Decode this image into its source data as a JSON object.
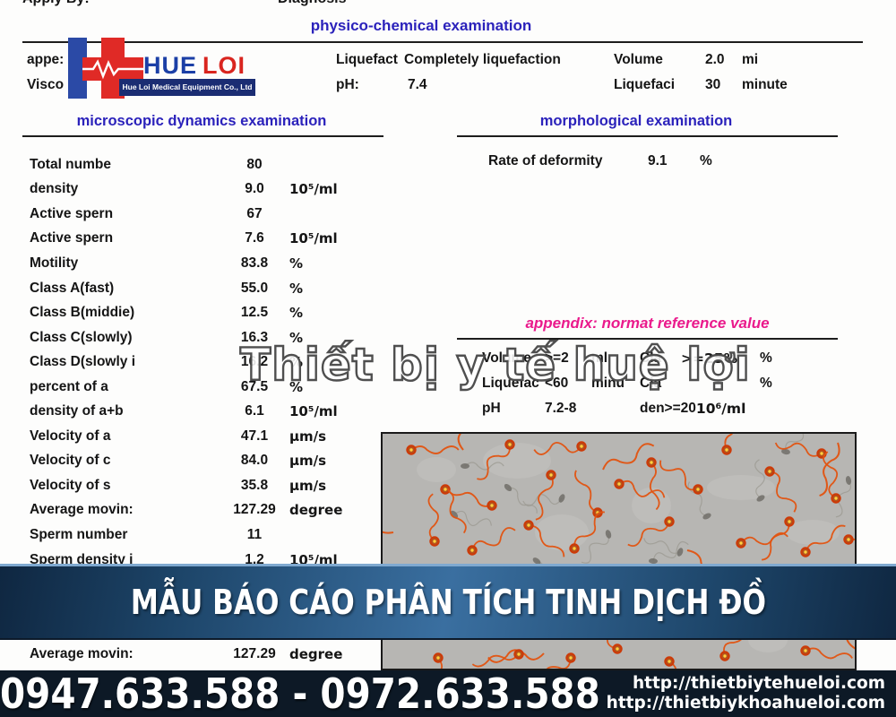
{
  "header": {
    "apply_by": "Apply By:",
    "diagnosis": "Diagnosis",
    "physico_title": "physico-chemical examination"
  },
  "logo": {
    "name_part1": "HUE",
    "name_part2": "LOI",
    "tagline": "Hue Loi Medical Equipment Co., Ltd"
  },
  "physico": {
    "appearance_label": "appe:",
    "viscosity_label": "Visco",
    "liquefact_label": "Liquefact",
    "liquefact_value": "Completely liquefaction",
    "volume_label": "Volume",
    "volume_value": "2.0",
    "volume_unit": "mi",
    "ph_label": "pH:",
    "ph_value": "7.4",
    "liquefaci_label": "Liquefaci",
    "liquefaci_value": "30",
    "liquefaci_unit": "minute"
  },
  "microscopic": {
    "title": "microscopic dynamics examination",
    "rows": [
      {
        "label": "Total numbe",
        "value": "80",
        "unit": ""
      },
      {
        "label": "density",
        "value": "9.0",
        "unit": "10⁵/ml"
      },
      {
        "label": "Active spern",
        "value": "67",
        "unit": ""
      },
      {
        "label": "Active spern",
        "value": "7.6",
        "unit": "10⁵/ml"
      },
      {
        "label": "Motility",
        "value": "83.8",
        "unit": "%"
      },
      {
        "label": "Class A(fast)",
        "value": "55.0",
        "unit": "%"
      },
      {
        "label": "Class B(middie)",
        "value": "12.5",
        "unit": "%"
      },
      {
        "label": "Class C(slowly)",
        "value": "16.3",
        "unit": "%"
      },
      {
        "label": "Class D(slowly i",
        "value": "16.2",
        "unit": "%"
      },
      {
        "label": "percent of a",
        "value": "67.5",
        "unit": "%"
      },
      {
        "label": "density of a+b",
        "value": "6.1",
        "unit": "10⁵/ml"
      },
      {
        "label": "Velocity of a",
        "value": "47.1",
        "unit": "µm/s"
      },
      {
        "label": "Velocity of c",
        "value": "84.0",
        "unit": "µm/s"
      },
      {
        "label": "Velocity of s",
        "value": "35.8",
        "unit": "µm/s"
      },
      {
        "label": "Average movin:",
        "value": "127.29",
        "unit": "degree"
      },
      {
        "label": "Sperm number",
        "value": "11",
        "unit": ""
      },
      {
        "label": "Sperm density i",
        "value": "1.2",
        "unit": "10⁵/ml"
      }
    ]
  },
  "morphological": {
    "title": "morphological examination",
    "rate_label": "Rate of deformity",
    "rate_value": "9.1",
    "rate_unit": "%"
  },
  "appendix": {
    "title": "appendix: normat reference value",
    "left_rows": [
      {
        "label": "Volume",
        "value": ">=2",
        "unit": "ml"
      },
      {
        "label": "Liquefac",
        "value": "<60",
        "unit": "minu"
      },
      {
        "label": "pH",
        "value": "7.2-8",
        "unit": ""
      }
    ],
    "right_rows": [
      {
        "label": "Cla",
        "value": ">=25%",
        "unit": "%"
      },
      {
        "label": "Cla",
        "value": "",
        "unit": "%"
      },
      {
        "label": "den>=20",
        "value": "10⁶/ml",
        "unit": ""
      }
    ]
  },
  "watermark": "Thiết bị y tế huệ lợi",
  "banner": {
    "text": "MẪU BÁO CÁO PHÂN TÍCH TINH DỊCH ĐỒ"
  },
  "bottom_row": {
    "label": "Average movin:",
    "value": "127.29",
    "unit": "degree"
  },
  "footer": {
    "phones": "0947.633.588 - 0972.633.588",
    "url1": "http://thietbiytehueloi.com",
    "url2": "http://thietbiykhoahueloi.com"
  },
  "colors": {
    "header_blue": "#2b22bb",
    "appendix_pink": "#ea1a8c",
    "logo_blue": "#2b4aa6",
    "logo_red": "#e02a26",
    "banner_light": "#3a6fa0",
    "banner_dark": "#0f2741",
    "footer_bg": "#0d1926"
  },
  "microscope_image": {
    "bg": "#b7b6b3",
    "patches": [
      [
        60,
        40
      ],
      [
        200,
        110
      ],
      [
        400,
        60
      ],
      [
        300,
        80
      ],
      [
        480,
        110
      ],
      [
        150,
        30
      ],
      [
        430,
        230
      ]
    ],
    "blobs": [
      [
        92,
        36
      ],
      [
        172,
        142
      ],
      [
        252,
        112
      ],
      [
        332,
        132
      ],
      [
        422,
        72
      ],
      [
        302,
        142
      ],
      [
        140,
        60
      ],
      [
        520,
        52
      ],
      [
        200,
        72
      ],
      [
        362,
        92
      ],
      [
        450,
        20
      ],
      [
        80,
        90
      ]
    ],
    "squiggles": [
      [
        12,
        110
      ],
      [
        90,
        18
      ],
      [
        246,
        40
      ],
      [
        340,
        130
      ],
      [
        508,
        10
      ],
      [
        180,
        245
      ],
      [
        528,
        240
      ]
    ],
    "cells": [
      [
        32,
        18
      ],
      [
        70,
        62
      ],
      [
        142,
        12
      ],
      [
        122,
        80
      ],
      [
        58,
        120
      ],
      [
        100,
        130
      ],
      [
        163,
        102
      ],
      [
        188,
        46
      ],
      [
        222,
        14
      ],
      [
        240,
        88
      ],
      [
        214,
        128
      ],
      [
        264,
        56
      ],
      [
        300,
        32
      ],
      [
        320,
        98
      ],
      [
        352,
        62
      ],
      [
        384,
        18
      ],
      [
        400,
        122
      ],
      [
        432,
        42
      ],
      [
        454,
        98
      ],
      [
        490,
        22
      ],
      [
        506,
        72
      ],
      [
        472,
        132
      ],
      [
        520,
        118
      ],
      [
        62,
        250
      ],
      [
        152,
        246
      ],
      [
        262,
        240
      ],
      [
        382,
        248
      ],
      [
        472,
        242
      ],
      [
        320,
        254
      ],
      [
        210,
        250
      ]
    ]
  }
}
